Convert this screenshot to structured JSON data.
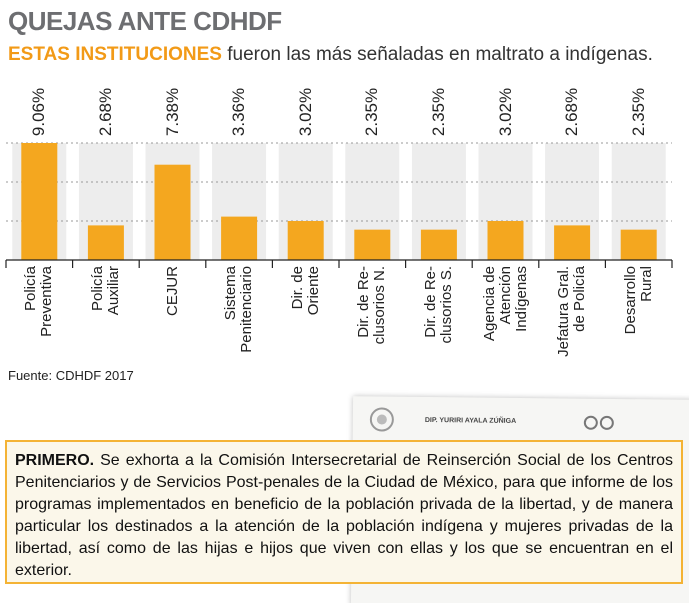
{
  "chart_data": {
    "type": "bar",
    "title": "QUEJAS ANTE CDHDF",
    "subtitle_highlight": "ESTAS INSTITUCIONES",
    "subtitle": "fueron las más señaladas en maltrato a indígenas.",
    "categories": [
      "Policía\nPreventiva",
      "Policía\nAuxiliar",
      "CEJUR",
      "Sistema\nPenitenciario",
      "Dir. de\nOriente",
      "Dir. de Re-\nclusorios N.",
      "Dir. de Re-\nclusorios S.",
      "Agencia de\nAtención\nIndígenas",
      "Jefatura Gral.\nde Policía",
      "Desarrollo\nRural"
    ],
    "values": [
      9.06,
      2.68,
      7.38,
      3.36,
      3.02,
      2.35,
      2.35,
      3.02,
      2.68,
      2.35
    ],
    "value_labels": [
      "9.06%",
      "2.68%",
      "7.38%",
      "3.36%",
      "3.02%",
      "2.35%",
      "2.35%",
      "3.02%",
      "2.68%",
      "2.35%"
    ],
    "color": "#f4a71f",
    "ylim": [
      0,
      9.06
    ],
    "source": "Fuente: CDHDF 2017"
  },
  "document": {
    "header": "DIP. YURIRI AYALA ZÚÑIGA",
    "lead": "PRIMERO.",
    "text": "Se exhorta a la Comisión Intersecretarial de Reinserción Social de los Centros Penitenciarios y de Servicios Post-penales de la Ciudad de México, para que informe de los programas implementados en beneficio de la población privada de la libertad, y de manera particular los destinados a la atención de la población indígena y mujeres privadas de la libertad, así como de las hijas e hijos que viven con ellas y los que se encuentran en el exterior."
  }
}
